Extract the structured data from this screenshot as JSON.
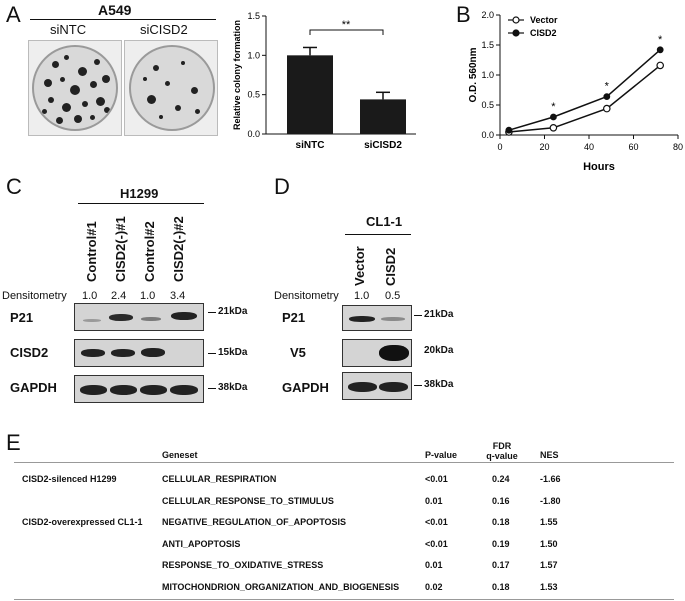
{
  "panels": {
    "A": "A",
    "B": "B",
    "C": "C",
    "D": "D",
    "E": "E"
  },
  "panelA": {
    "cell_line": "A549",
    "plate_labels": [
      "siNTC",
      "siCISD2"
    ],
    "sig": "**"
  },
  "panelB": {
    "sig": "*"
  },
  "panelC": {
    "cell_line": "H1299",
    "lanes": [
      "Control#1",
      "CISD2(-)#1",
      "Control#2",
      "CISD2(-)#2"
    ],
    "densitometry_label": "Densitometry",
    "densitometry": [
      "1.0",
      "2.4",
      "1.0",
      "3.4"
    ],
    "blots": [
      "P21",
      "CISD2",
      "GAPDH"
    ],
    "sizes": [
      "21kDa",
      "15kDa",
      "38kDa"
    ]
  },
  "panelD": {
    "cell_line": "CL1-1",
    "lanes": [
      "Vector",
      "CISD2"
    ],
    "densitometry_label": "Densitometry",
    "densitometry": [
      "1.0",
      "0.5"
    ],
    "blots": [
      "P21",
      "V5",
      "GAPDH"
    ],
    "sizes": [
      "21kDa",
      "20kDa",
      "38kDa"
    ]
  },
  "panelE": {
    "headers": {
      "geneset": "Geneset",
      "pvalue": "P-value",
      "fdr_line1": "FDR",
      "fdr_line2": "q-value",
      "nes": "NES"
    },
    "rows": [
      {
        "group": "CISD2-silenced H1299",
        "geneset": "CELLULAR_RESPIRATION",
        "p": "<0.01",
        "fdr": "0.24",
        "nes": "-1.66"
      },
      {
        "group": "",
        "geneset": "CELLULAR_RESPONSE_TO_STIMULUS",
        "p": "0.01",
        "fdr": "0.16",
        "nes": "-1.80"
      },
      {
        "group": "CISD2-overexpressed CL1-1",
        "geneset": "NEGATIVE_REGULATION_OF_APOPTOSIS",
        "p": "<0.01",
        "fdr": "0.18",
        "nes": "1.55"
      },
      {
        "group": "",
        "geneset": "ANTI_APOPTOSIS",
        "p": "<0.01",
        "fdr": "0.19",
        "nes": "1.50"
      },
      {
        "group": "",
        "geneset": "RESPONSE_TO_OXIDATIVE_STRESS",
        "p": "0.01",
        "fdr": "0.17",
        "nes": "1.57"
      },
      {
        "group": "",
        "geneset": "MITOCHONDRION_ORGANIZATION_AND_BIOGENESIS",
        "p": "0.02",
        "fdr": "0.18",
        "nes": "1.53"
      }
    ]
  },
  "chart_data": [
    {
      "type": "bar",
      "categories": [
        "siNTC",
        "siCISD2"
      ],
      "values": [
        1.0,
        0.44
      ],
      "errors": [
        0.1,
        0.09
      ],
      "ylabel": "Relative colony formation",
      "xlabel": "",
      "ylim": [
        0,
        1.5
      ],
      "yticks": [
        "0.0",
        "0.5",
        "1.0",
        "1.5"
      ],
      "bar_color": "#1a1a1a",
      "annotation": "**"
    },
    {
      "type": "line",
      "x": [
        4,
        24,
        48,
        72
      ],
      "series": [
        {
          "name": "Vector",
          "values": [
            0.05,
            0.12,
            0.44,
            1.16
          ],
          "marker": "open-circle"
        },
        {
          "name": "CISD2",
          "values": [
            0.08,
            0.3,
            0.64,
            1.42
          ],
          "marker": "filled-circle"
        }
      ],
      "xlabel": "Hours",
      "ylabel": "O.D. 560nm",
      "xlim": [
        0,
        80
      ],
      "ylim": [
        0,
        2.0
      ],
      "xticks": [
        "0",
        "20",
        "40",
        "60",
        "80"
      ],
      "yticks": [
        "0.0",
        "0.5",
        "1.0",
        "1.5",
        "2.0"
      ],
      "legend": "top-left",
      "significance_at": [
        24,
        48,
        72
      ]
    }
  ]
}
